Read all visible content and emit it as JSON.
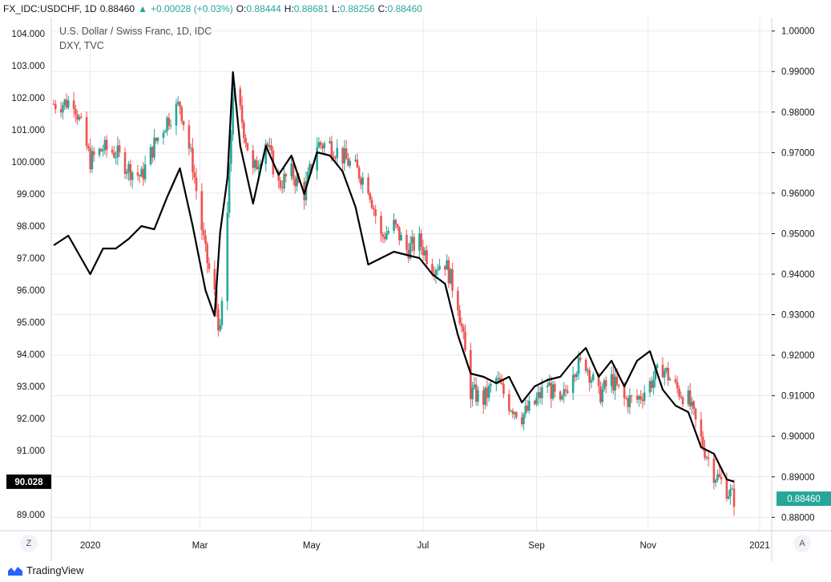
{
  "header": {
    "symbol": "FX_IDC:USDCHF, 1D",
    "last": "0.88460",
    "change": "+0.00028 (+0.03%)",
    "open_label": "O:",
    "open": "0.88444",
    "high_label": "H:",
    "high": "0.88681",
    "low_label": "L:",
    "low": "0.88256",
    "close_label": "C:",
    "close": "0.88460"
  },
  "legend": {
    "main": "U.S. Dollar / Swiss Franc, 1D, IDC",
    "compare": "DXY, TVC"
  },
  "footer": {
    "brand": "TradingView",
    "left_button": "Z",
    "right_button": "A"
  },
  "colors": {
    "up": "#26a69a",
    "down": "#ef5350",
    "compare_line": "#000000",
    "grid": "#e6e9f0"
  },
  "chart_data": {
    "type": "line",
    "left_axis": {
      "label": "DXY",
      "ticks": [
        "104.000",
        "103.000",
        "102.000",
        "101.000",
        "100.000",
        "99.000",
        "98.000",
        "97.000",
        "96.000",
        "95.000",
        "94.000",
        "93.000",
        "92.000",
        "91.000",
        "89.000"
      ],
      "ylim": [
        88.5,
        104.5
      ],
      "last_value": "90.028"
    },
    "right_axis": {
      "label": "USDCHF",
      "ticks": [
        "1.00000",
        "0.99000",
        "0.98000",
        "0.97000",
        "0.96000",
        "0.95000",
        "0.94000",
        "0.93000",
        "0.92000",
        "0.91000",
        "0.90000",
        "0.89000",
        "0.88000"
      ],
      "ylim": [
        0.8767,
        1.0033
      ],
      "last_value": "0.88460"
    },
    "x_ticks": [
      "2020",
      "Mar",
      "May",
      "Jul",
      "Sep",
      "Nov",
      "2021"
    ],
    "series": [
      {
        "name": "U.S. Dollar / Swiss Franc",
        "style": "candlestick",
        "axis": "right",
        "dates": [
          "2019-12-16",
          "2019-12-23",
          "2020-01-01",
          "2020-01-08",
          "2020-01-15",
          "2020-01-22",
          "2020-01-29",
          "2020-02-05",
          "2020-02-12",
          "2020-02-19",
          "2020-02-26",
          "2020-03-04",
          "2020-03-09",
          "2020-03-12",
          "2020-03-16",
          "2020-03-19",
          "2020-03-23",
          "2020-03-30",
          "2020-04-06",
          "2020-04-13",
          "2020-04-20",
          "2020-04-27",
          "2020-05-04",
          "2020-05-11",
          "2020-05-18",
          "2020-05-25",
          "2020-06-01",
          "2020-06-08",
          "2020-06-15",
          "2020-06-22",
          "2020-06-29",
          "2020-07-06",
          "2020-07-13",
          "2020-07-20",
          "2020-07-27",
          "2020-08-03",
          "2020-08-10",
          "2020-08-17",
          "2020-08-24",
          "2020-08-31",
          "2020-09-07",
          "2020-09-14",
          "2020-09-21",
          "2020-09-28",
          "2020-10-05",
          "2020-10-12",
          "2020-10-19",
          "2020-10-26",
          "2020-11-02",
          "2020-11-09",
          "2020-11-16",
          "2020-11-23",
          "2020-11-30",
          "2020-12-07",
          "2020-12-14",
          "2020-12-18"
        ],
        "values": [
          0.982,
          0.983,
          0.968,
          0.971,
          0.97,
          0.966,
          0.964,
          0.972,
          0.978,
          0.982,
          0.967,
          0.945,
          0.935,
          0.925,
          0.955,
          0.985,
          0.98,
          0.965,
          0.973,
          0.962,
          0.965,
          0.96,
          0.972,
          0.972,
          0.969,
          0.966,
          0.962,
          0.949,
          0.952,
          0.946,
          0.948,
          0.942,
          0.943,
          0.933,
          0.911,
          0.909,
          0.914,
          0.908,
          0.905,
          0.908,
          0.913,
          0.907,
          0.917,
          0.918,
          0.91,
          0.914,
          0.909,
          0.909,
          0.913,
          0.917,
          0.912,
          0.909,
          0.899,
          0.891,
          0.887,
          0.8846
        ]
      },
      {
        "name": "DXY",
        "style": "line",
        "axis": "left",
        "dates": [
          "2019-12-12",
          "2019-12-20",
          "2020-01-01",
          "2020-01-08",
          "2020-01-15",
          "2020-01-22",
          "2020-01-29",
          "2020-02-05",
          "2020-02-12",
          "2020-02-19",
          "2020-02-26",
          "2020-03-04",
          "2020-03-09",
          "2020-03-12",
          "2020-03-16",
          "2020-03-19",
          "2020-03-23",
          "2020-03-30",
          "2020-04-06",
          "2020-04-13",
          "2020-04-20",
          "2020-04-27",
          "2020-05-04",
          "2020-05-11",
          "2020-05-18",
          "2020-05-25",
          "2020-06-01",
          "2020-06-08",
          "2020-06-15",
          "2020-06-22",
          "2020-06-29",
          "2020-07-06",
          "2020-07-13",
          "2020-07-20",
          "2020-07-27",
          "2020-08-03",
          "2020-08-10",
          "2020-08-17",
          "2020-08-24",
          "2020-08-31",
          "2020-09-07",
          "2020-09-14",
          "2020-09-21",
          "2020-09-28",
          "2020-10-05",
          "2020-10-12",
          "2020-10-19",
          "2020-10-26",
          "2020-11-02",
          "2020-11-09",
          "2020-11-16",
          "2020-11-23",
          "2020-11-30",
          "2020-12-07",
          "2020-12-14",
          "2020-12-18"
        ],
        "values": [
          97.4,
          97.7,
          96.5,
          97.3,
          97.3,
          97.6,
          98.0,
          97.9,
          98.9,
          99.8,
          98.0,
          96.0,
          95.2,
          97.8,
          99.5,
          102.8,
          100.5,
          98.7,
          100.5,
          99.6,
          100.2,
          99.0,
          100.3,
          100.2,
          99.7,
          98.6,
          96.8,
          97.0,
          97.2,
          97.1,
          97.0,
          96.5,
          96.2,
          94.6,
          93.4,
          93.3,
          93.1,
          93.3,
          92.5,
          93.0,
          93.2,
          93.3,
          93.8,
          94.2,
          93.3,
          93.8,
          93.0,
          93.8,
          94.1,
          92.9,
          92.4,
          92.2,
          91.1,
          90.9,
          90.1,
          90.03
        ]
      }
    ]
  }
}
